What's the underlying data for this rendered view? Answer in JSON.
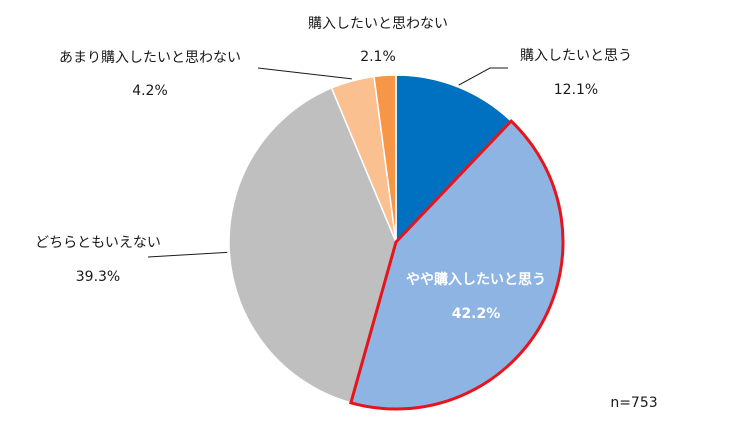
{
  "chart_data": {
    "type": "pie",
    "slices": [
      {
        "label": "購入したいと思う",
        "value": 12.1,
        "value_label": "12.1%",
        "color": "#0070C0",
        "highlight": false
      },
      {
        "label": "やや購入したいと思う",
        "value": 42.2,
        "value_label": "42.2%",
        "color": "#8EB4E3",
        "highlight": true
      },
      {
        "label": "どちらともいえない",
        "value": 39.3,
        "value_label": "39.3%",
        "color": "#BFBFBF",
        "highlight": false
      },
      {
        "label": "あまり購入したいと思わない",
        "value": 4.2,
        "value_label": "4.2%",
        "color": "#FAC090",
        "highlight": false
      },
      {
        "label": "購入したいと思わない",
        "value": 2.1,
        "value_label": "2.1%",
        "color": "#F79646",
        "highlight": false
      }
    ],
    "highlight_color": "#E8141B",
    "annotation": "n=753"
  }
}
